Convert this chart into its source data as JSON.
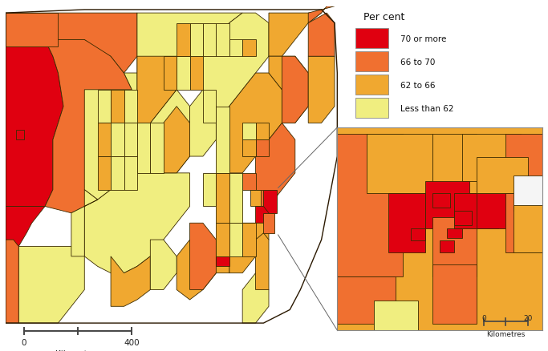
{
  "legend_title": "Per cent",
  "legend_items": [
    {
      "label": "70 or more",
      "color": "#E00010"
    },
    {
      "label": "66 to 70",
      "color": "#F07030"
    },
    {
      "label": "62 to 66",
      "color": "#F0A830"
    },
    {
      "label": "Less than 62",
      "color": "#F0EE80"
    }
  ],
  "scale_bar_main": {
    "label": "Kilometres",
    "val0": "0",
    "val1": "400"
  },
  "scale_bar_inset": {
    "label": "Kilometres",
    "val0": "0",
    "val1": "20"
  },
  "background_color": "#FFFFFF",
  "border_color": "#3a2a00",
  "border_lw": 0.6,
  "connection_color": "#555555",
  "inset_border_color": "#888888"
}
